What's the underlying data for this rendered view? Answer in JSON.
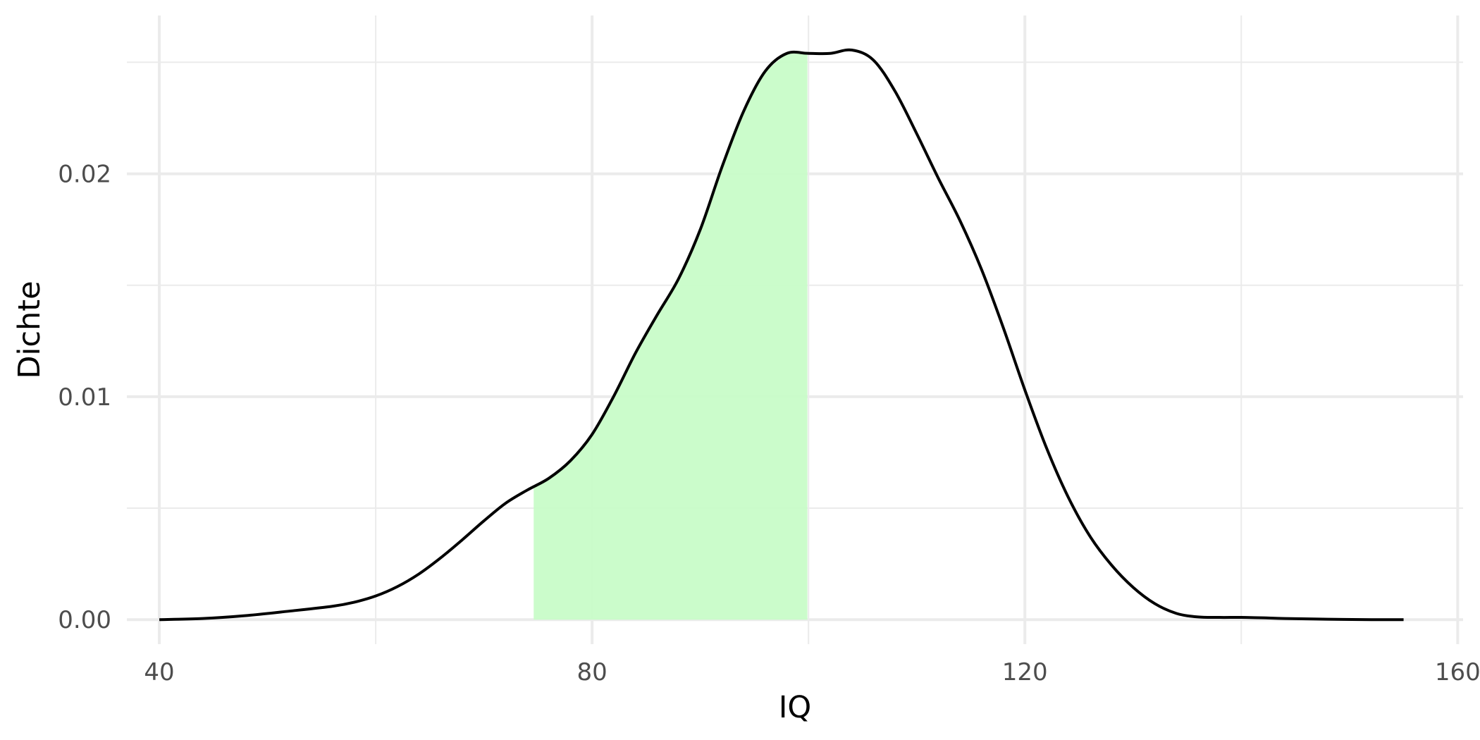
{
  "chart_data": {
    "type": "area",
    "title": "",
    "xlabel": "IQ",
    "ylabel": "Dichte",
    "xlim": [
      37,
      160.5
    ],
    "ylim": [
      -0.0011,
      0.0271
    ],
    "x_ticks": [
      40,
      80,
      120,
      160
    ],
    "x_tick_labels": [
      "40",
      "80",
      "120",
      "160"
    ],
    "x_minor_ticks": [
      60,
      100,
      140
    ],
    "y_ticks": [
      0.0,
      0.01,
      0.02
    ],
    "y_tick_labels": [
      "0.00",
      "0.01",
      "0.02"
    ],
    "y_minor_ticks": [
      0.005,
      0.015,
      0.025
    ],
    "grid": true,
    "legend": "none",
    "colors": {
      "line": "#000000",
      "fill": "#c8fcc8",
      "grid": "#ebebeb"
    },
    "shaded_region": {
      "x_from": 74.6,
      "x_to": 99.9
    },
    "series": [
      {
        "x": [
          40,
          44,
          48,
          52,
          56,
          58,
          60,
          62,
          64,
          66,
          68,
          70,
          72,
          74,
          76,
          78,
          80,
          82,
          84,
          86,
          88,
          90,
          92,
          94,
          96,
          98,
          100,
          102,
          104,
          106,
          108,
          110,
          112,
          114,
          116,
          118,
          120,
          122,
          124,
          126,
          128,
          130,
          132,
          134,
          136,
          138,
          140,
          142,
          144,
          148,
          152,
          155
        ],
        "y": [
          0.0,
          5e-05,
          0.00018,
          0.00038,
          0.0006,
          0.00078,
          0.00106,
          0.00148,
          0.00205,
          0.00277,
          0.00358,
          0.00443,
          0.00522,
          0.00581,
          0.00634,
          0.00713,
          0.00831,
          0.01002,
          0.01195,
          0.01366,
          0.0153,
          0.0175,
          0.0203,
          0.0228,
          0.0246,
          0.0254,
          0.0254,
          0.0254,
          0.02555,
          0.0251,
          0.0237,
          0.0218,
          0.0198,
          0.0179,
          0.0157,
          0.0131,
          0.0103,
          0.0077,
          0.0055,
          0.00375,
          0.00245,
          0.00145,
          0.00072,
          0.00028,
          0.00012,
          0.0001,
          0.0001,
          8e-05,
          5e-05,
          2e-05,
          0.0,
          0.0
        ]
      }
    ]
  }
}
